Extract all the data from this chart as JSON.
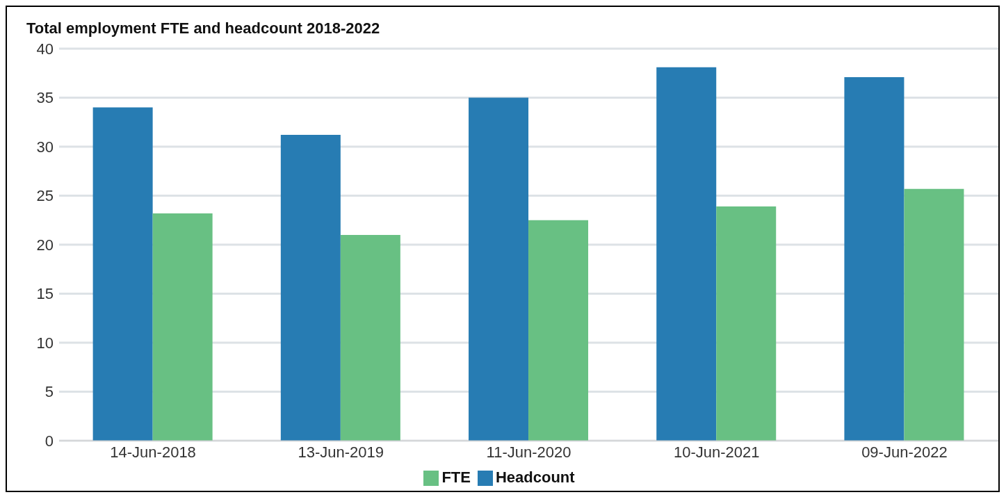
{
  "chart_data": {
    "type": "bar",
    "title": "Total employment FTE and headcount 2018-2022",
    "categories": [
      "14-Jun-2018",
      "13-Jun-2019",
      "11-Jun-2020",
      "10-Jun-2021",
      "09-Jun-2022"
    ],
    "series": [
      {
        "name": "Headcount",
        "color": "#277cb3",
        "values": [
          34,
          31.2,
          35,
          38.1,
          37.1
        ]
      },
      {
        "name": "FTE",
        "color": "#68c083",
        "values": [
          23.2,
          21.0,
          22.5,
          23.9,
          25.7
        ]
      }
    ],
    "ylim": [
      0,
      40
    ],
    "yticks": [
      0,
      5,
      10,
      15,
      20,
      25,
      30,
      35,
      40
    ],
    "grid": "y",
    "legend": "bottom"
  }
}
